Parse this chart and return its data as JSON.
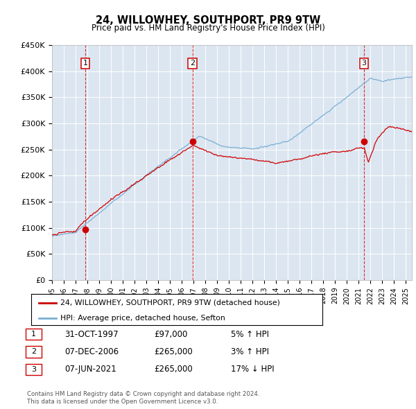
{
  "title": "24, WILLOWHEY, SOUTHPORT, PR9 9TW",
  "subtitle": "Price paid vs. HM Land Registry's House Price Index (HPI)",
  "background_color": "#ffffff",
  "plot_bg_color": "#dce6f1",
  "grid_color": "#ffffff",
  "ylim": [
    0,
    450000
  ],
  "yticks": [
    0,
    50000,
    100000,
    150000,
    200000,
    250000,
    300000,
    350000,
    400000,
    450000
  ],
  "ytick_labels": [
    "£0",
    "£50K",
    "£100K",
    "£150K",
    "£200K",
    "£250K",
    "£300K",
    "£350K",
    "£400K",
    "£450K"
  ],
  "xlim_start": 1995.0,
  "xlim_end": 2025.5,
  "sale1": {
    "year": 1997.83,
    "price": 97000,
    "label": "1"
  },
  "sale2": {
    "year": 2006.92,
    "price": 265000,
    "label": "2"
  },
  "sale3": {
    "year": 2021.44,
    "price": 265000,
    "label": "3"
  },
  "red_color": "#cc0000",
  "blue_color": "#7bafd4",
  "dashed_line_color": "#cc0000",
  "legend_line1": "24, WILLOWHEY, SOUTHPORT, PR9 9TW (detached house)",
  "legend_line2": "HPI: Average price, detached house, Sefton",
  "table_rows": [
    {
      "num": "1",
      "date": "31-OCT-1997",
      "price": "£97,000",
      "hpi": "5% ↑ HPI"
    },
    {
      "num": "2",
      "date": "07-DEC-2006",
      "price": "£265,000",
      "hpi": "3% ↑ HPI"
    },
    {
      "num": "3",
      "date": "07-JUN-2021",
      "price": "£265,000",
      "hpi": "17% ↓ HPI"
    }
  ],
  "footer1": "Contains HM Land Registry data © Crown copyright and database right 2024.",
  "footer2": "This data is licensed under the Open Government Licence v3.0."
}
